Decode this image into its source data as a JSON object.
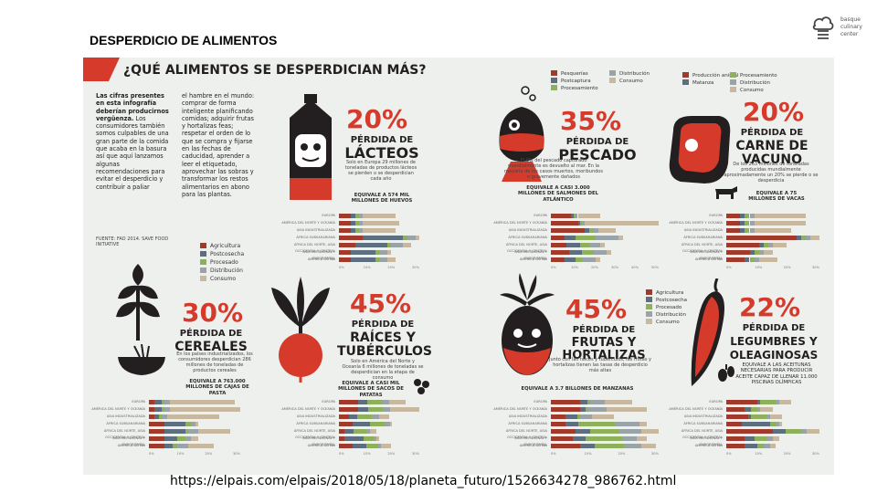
{
  "slide": {
    "title": "DESPERDICIO DE ALIMENTOS",
    "source_url": "https://elpais.com/elpais/2018/05/18/planeta_futuro/1526634278_986762.html",
    "brand_lines": [
      "basque",
      "culinary",
      "center"
    ]
  },
  "infographic": {
    "headline": "¿QUÉ ALIMENTOS SE DESPERDICIAN MÁS?",
    "intro_bold": "Las cifras presentes en esta infografía deberían producirnos vergüenza.",
    "intro_col1": "Los consumidores también somos culpables de una gran parte de la comida que acaba en la basura así que aquí lanzamos algunas recomendaciones para evitar el desperdicio y contribuir a paliar",
    "intro_col2": "el hambre en el mundo: comprar de forma inteligente planificando comidas; adquirir frutas y hortalizas feas; respetar el orden de lo que se compra y fijarse en las fechas de caducidad, aprender a leer el etiquetado, aprovechar las sobras y transformar los restos alimentarios en abono para las plantas.",
    "source_note": "FUENTE: FAO 2014. SAVE FOOD INITIATIVE",
    "stage_legend": [
      "Agricultura",
      "Postcosecha",
      "Procesado",
      "Distribución",
      "Consumo"
    ],
    "fish_legend": [
      "Pesquerías",
      "Postcaptura",
      "Procesamiento",
      "Distribución",
      "Consumo"
    ],
    "beef_legend": [
      "Producción animal",
      "Matanza",
      "Procesamiento",
      "Distribución",
      "Consumo"
    ],
    "regions": [
      "EUROPA",
      "AMÉRICA DEL NORTE Y OCEANÍA",
      "ASIA INDUSTRIALIZADA",
      "ÁFRICA SUBSAHARIANA",
      "ÁFRICA DEL NORTE, ASIA OCCIDENTAL Y CENTRAL",
      "ASIA MERIDIONAL Y SUDORIENTAL",
      "AMÉRICA LATINA"
    ],
    "axis_ticks": [
      "0%",
      "10%",
      "20%",
      "30%"
    ],
    "axis_ticks_fish": [
      "0%",
      "10%",
      "20%",
      "30%",
      "40%",
      "50%"
    ],
    "panels": {
      "dairy": {
        "percent": "20%",
        "label_small": "PÉRDIDA DE",
        "label_big": "LÁCTEOS",
        "note": "Solo en Europa 29 millones de toneladas de productos lácteos se pierden o se desperdician cada año",
        "equivalent": "EQUIVALE A 574 MIL MILLONES DE HUEVOS"
      },
      "fish": {
        "percent": "35%",
        "label_small": "PÉRDIDA DE",
        "label_big": "PESCADO",
        "note": "El 8% del pescado capturado mundialmente es devuelto al mar. En la mayoría de los casos muertos, moribundos o gravemente dañados",
        "equivalent": "EQUIVALE A CASI 3.000 MILLONES DE SALMONES DEL ATLÁNTICO"
      },
      "beef": {
        "percent": "20%",
        "label_small": "PÉRDIDA DE",
        "label_big": "CARNE DE VACUNO",
        "note": "De los 263 millones de toneladas producidas mundialmente aproximadamente un 20% se pierde o se desperdicia",
        "equivalent": "EQUIVALE A 75 MILLONES DE VACAS"
      },
      "cereals": {
        "percent": "30%",
        "label_small": "PÉRDIDA DE",
        "label_big": "CEREALES",
        "note": "En los países industrializados, los consumidores desperdician 286 millones de toneladas de productos cereales",
        "equivalent": "EQUIVALE A 763.000 MILLONES DE CAJAS DE PASTA"
      },
      "roots": {
        "percent": "45%",
        "label_small": "PÉRDIDA DE",
        "label_big": "RAÍCES Y TUBÉRCULOS",
        "note": "Solo en América del Norte y Oceanía 6 millones de toneladas se desperdician en la etapa de consumo",
        "equivalent": "EQUIVALE A CASI MIL MILLONES DE SACOS DE PATATAS"
      },
      "fruit": {
        "percent": "45%",
        "label_small": "PÉRDIDA DE",
        "label_big": "FRUTAS Y HORTALIZAS",
        "note": "Junto con las raíces y tubérculos, las frutas y hortalizas tienen las tasas de desperdicio más altas",
        "equivalent": "EQUIVALE A 3.7 BILLONES DE MANZANAS"
      },
      "legumes": {
        "percent": "22%",
        "label_small": "PÉRDIDA DE",
        "label_big": "LEGUMBRES Y OLEAGINOSAS",
        "equivalent": "EQUIVALE A LAS ACEITUNAS NECESARIAS PARA PRODUCIR ACEITE CAPAZ DE LLENAR 11.000 PISCINAS OLÍMPICAS"
      }
    },
    "colors": {
      "accent": "#d63a2a",
      "dark": "#231f20",
      "background": "#eef0ee",
      "agricultura": "#a23a2c",
      "postcosecha": "#5d6f7e",
      "procesado": "#8fb05a",
      "distribucion": "#9aa3a8",
      "consumo": "#c9b8a0"
    }
  }
}
